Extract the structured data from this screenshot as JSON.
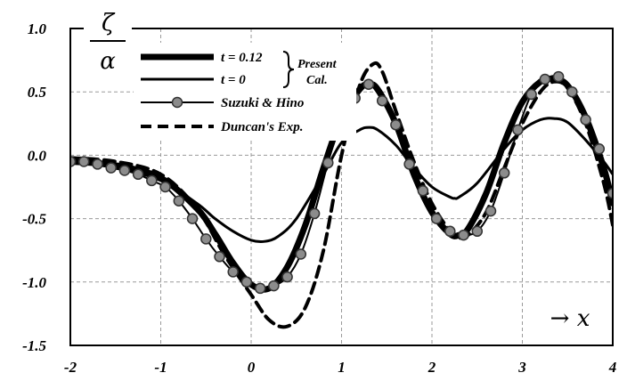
{
  "chart_data": {
    "type": "line",
    "ylabel": {
      "numerator": "ζ",
      "denominator": "α"
    },
    "xlabel": "→ x",
    "xlim": [
      -2,
      4
    ],
    "ylim": [
      -1.5,
      1.0
    ],
    "x_ticks": [
      "-2",
      "-1",
      "0",
      "1",
      "2",
      "3",
      "4"
    ],
    "y_ticks": [
      "1.0",
      "0.5",
      "0.0",
      "-0.5",
      "-1.0",
      "-1.5"
    ],
    "grid": true,
    "legend": {
      "position": "top-left",
      "entries": [
        "t = 0.12",
        "t =  0",
        "Suzuki & Hino",
        "Duncan's Exp."
      ],
      "brace_label": [
        "Present",
        "Cal."
      ]
    },
    "series": [
      {
        "name": "t = 0.12",
        "style": "thick",
        "x": [
          -2.0,
          -1.5,
          -1.0,
          -0.6,
          -0.4,
          -0.2,
          0.0,
          0.2,
          0.4,
          0.6,
          0.8,
          1.0,
          1.2,
          1.3,
          1.4,
          1.6,
          1.8,
          2.0,
          2.2,
          2.3,
          2.4,
          2.6,
          2.8,
          3.0,
          3.2,
          3.35,
          3.5,
          3.7,
          3.9,
          4.0
        ],
        "y": [
          -0.05,
          -0.08,
          -0.18,
          -0.42,
          -0.62,
          -0.85,
          -1.02,
          -1.05,
          -0.88,
          -0.55,
          -0.1,
          0.3,
          0.52,
          0.56,
          0.52,
          0.25,
          -0.15,
          -0.45,
          -0.62,
          -0.63,
          -0.58,
          -0.3,
          0.1,
          0.42,
          0.58,
          0.6,
          0.55,
          0.3,
          -0.1,
          -0.38
        ]
      },
      {
        "name": "t =  0",
        "style": "thin",
        "x": [
          -2.0,
          -1.5,
          -1.0,
          -0.6,
          -0.4,
          -0.2,
          0.0,
          0.15,
          0.3,
          0.5,
          0.8,
          1.0,
          1.2,
          1.3,
          1.4,
          1.6,
          1.8,
          2.0,
          2.2,
          2.25,
          2.3,
          2.5,
          2.8,
          3.0,
          3.2,
          3.35,
          3.5,
          3.7,
          3.9,
          4.0
        ],
        "y": [
          -0.05,
          -0.1,
          -0.2,
          -0.38,
          -0.5,
          -0.6,
          -0.67,
          -0.68,
          -0.64,
          -0.5,
          -0.15,
          0.1,
          0.2,
          0.22,
          0.2,
          0.08,
          -0.1,
          -0.25,
          -0.33,
          -0.34,
          -0.33,
          -0.22,
          0.05,
          0.2,
          0.28,
          0.29,
          0.26,
          0.12,
          -0.05,
          -0.15
        ]
      },
      {
        "name": "Suzuki & Hino",
        "style": "markers",
        "x": [
          -2.0,
          -1.85,
          -1.7,
          -1.55,
          -1.4,
          -1.25,
          -1.1,
          -0.95,
          -0.8,
          -0.65,
          -0.5,
          -0.35,
          -0.2,
          -0.05,
          0.1,
          0.25,
          0.4,
          0.55,
          0.7,
          0.85,
          1.0,
          1.15,
          1.3,
          1.45,
          1.6,
          1.75,
          1.9,
          2.05,
          2.2,
          2.35,
          2.5,
          2.65,
          2.8,
          2.95,
          3.1,
          3.25,
          3.4,
          3.55,
          3.7,
          3.85,
          4.0
        ],
        "y": [
          -0.05,
          -0.05,
          -0.07,
          -0.1,
          -0.12,
          -0.15,
          -0.2,
          -0.25,
          -0.36,
          -0.5,
          -0.66,
          -0.8,
          -0.92,
          -1.0,
          -1.05,
          -1.03,
          -0.96,
          -0.78,
          -0.46,
          -0.06,
          0.28,
          0.45,
          0.56,
          0.43,
          0.24,
          -0.07,
          -0.28,
          -0.5,
          -0.6,
          -0.63,
          -0.6,
          -0.44,
          -0.14,
          0.2,
          0.48,
          0.6,
          0.62,
          0.5,
          0.28,
          0.05,
          -0.3
        ]
      },
      {
        "name": "Duncan's Exp.",
        "style": "dashed",
        "x": [
          -2.0,
          -1.5,
          -1.0,
          -0.6,
          -0.3,
          0.0,
          0.2,
          0.4,
          0.6,
          0.8,
          1.0,
          1.2,
          1.35,
          1.45,
          1.6,
          1.8,
          2.0,
          2.2,
          2.3,
          2.4,
          2.6,
          2.8,
          3.0,
          3.2,
          3.35,
          3.5,
          3.7,
          3.9,
          4.0
        ],
        "y": [
          -0.02,
          -0.05,
          -0.15,
          -0.42,
          -0.78,
          -1.1,
          -1.3,
          -1.35,
          -1.2,
          -0.75,
          0.0,
          0.55,
          0.72,
          0.66,
          0.35,
          -0.05,
          -0.38,
          -0.6,
          -0.65,
          -0.63,
          -0.45,
          -0.1,
          0.25,
          0.5,
          0.58,
          0.53,
          0.25,
          -0.22,
          -0.55
        ]
      }
    ]
  }
}
